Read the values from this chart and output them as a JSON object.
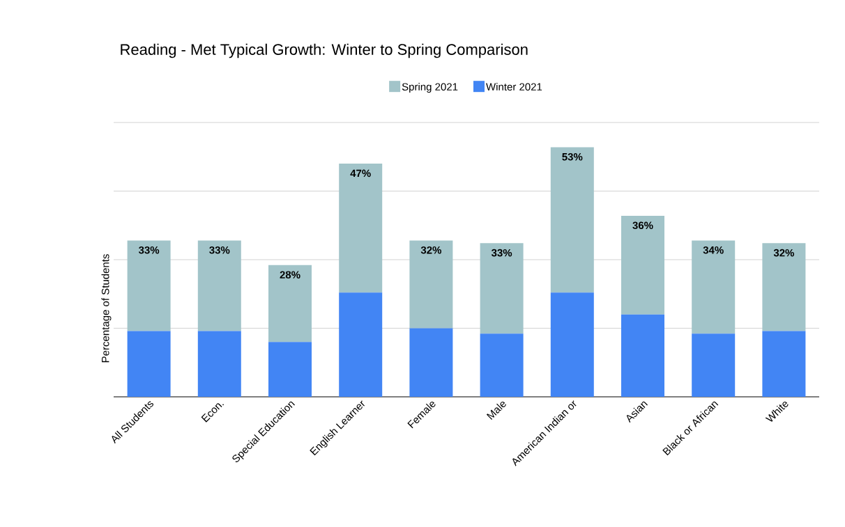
{
  "chart_data": {
    "type": "bar",
    "stacked": true,
    "title": "Reading - Met Typical Growth: Winter to Spring Comparison",
    "ylabel": "Percentage of Students",
    "categories": [
      "All Students",
      "Econ.",
      "Special Education",
      "English Learner",
      "Female",
      "Male",
      "American Indian or",
      "Asian",
      "Black or African",
      "White"
    ],
    "series": [
      {
        "name": "Winter 2021",
        "color": "#4285f4",
        "values": [
          24,
          24,
          20,
          38,
          25,
          23,
          38,
          30,
          23,
          24
        ]
      },
      {
        "name": "Spring 2021",
        "color": "#a2c4c9",
        "values": [
          33,
          33,
          28,
          47,
          32,
          33,
          53,
          36,
          34,
          32
        ],
        "value_labels": [
          "33%",
          "33%",
          "28%",
          "47%",
          "32%",
          "33%",
          "53%",
          "36%",
          "34%",
          "32%"
        ]
      }
    ],
    "ylim": [
      0,
      100
    ],
    "yticks": [
      {
        "value": 25,
        "label": null
      },
      {
        "value": 50,
        "label": null
      },
      {
        "value": 75,
        "label": null
      },
      {
        "value": 100,
        "label": null
      }
    ],
    "grid": "y",
    "legend": "top",
    "tick_labels": "x"
  }
}
